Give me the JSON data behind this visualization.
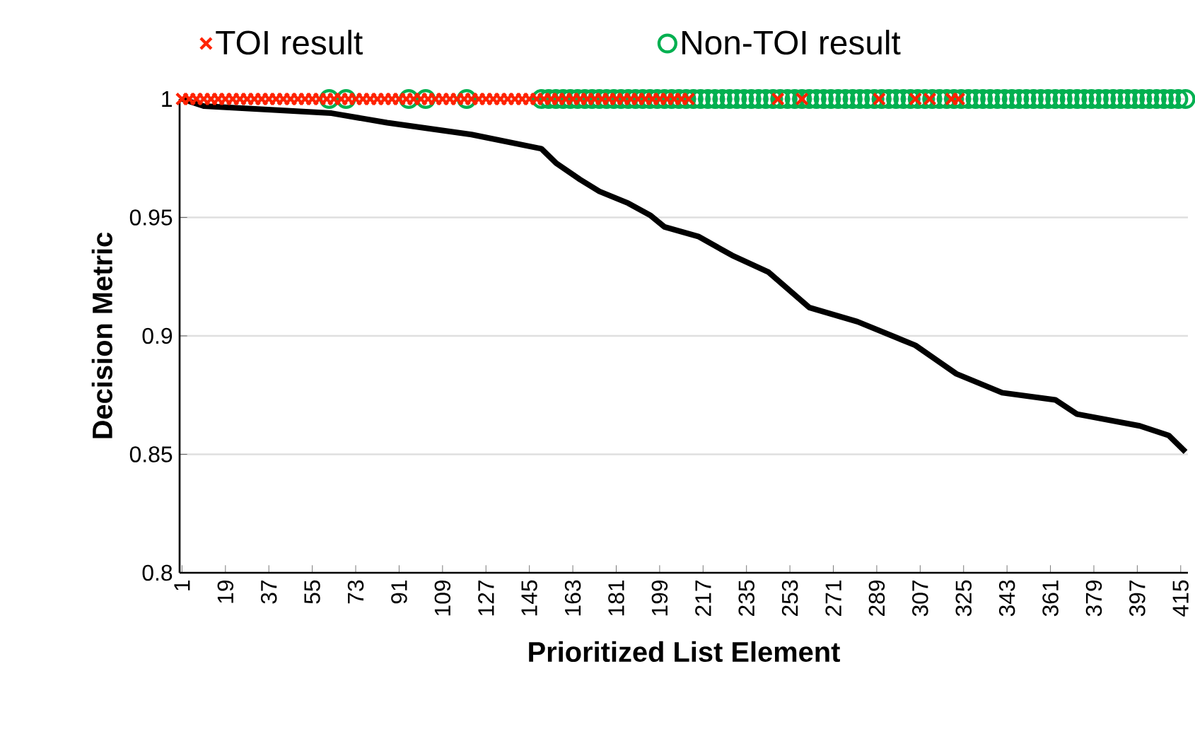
{
  "chart_data": {
    "type": "scatter",
    "xlabel": "Prioritized List Element",
    "ylabel": "Decision Metric",
    "xlim": [
      0,
      418
    ],
    "ylim": [
      0.8,
      1
    ],
    "xticks": [
      1,
      19,
      37,
      55,
      73,
      91,
      109,
      127,
      145,
      163,
      181,
      199,
      217,
      235,
      253,
      271,
      289,
      307,
      325,
      343,
      361,
      379,
      397,
      415
    ],
    "yticks": [
      {
        "value": 0.8,
        "label": "0.8"
      },
      {
        "value": 0.85,
        "label": "0.85"
      },
      {
        "value": 0.9,
        "label": "0.9"
      },
      {
        "value": 0.95,
        "label": "0.95"
      },
      {
        "value": 1,
        "label": "1"
      }
    ],
    "grid": "y",
    "legend": "top",
    "series": [
      {
        "type": "line",
        "color": "#000000",
        "marker": "none",
        "x": [
          1,
          10,
          63,
          86,
          121,
          150,
          156,
          166,
          174,
          186,
          195,
          201,
          215,
          229,
          244,
          261,
          281,
          305,
          322,
          341,
          363,
          372,
          398,
          410,
          417
        ],
        "values": [
          1,
          0.997,
          0.994,
          0.99,
          0.985,
          0.979,
          0.973,
          0.966,
          0.961,
          0.956,
          0.951,
          0.946,
          0.942,
          0.934,
          0.927,
          0.912,
          0.906,
          0.896,
          0.884,
          0.876,
          0.873,
          0.867,
          0.862,
          0.858,
          0.851
        ]
      },
      {
        "name": "Non-TOI result",
        "color": "#00b050",
        "marker": "circle",
        "x": [
          62,
          69,
          95,
          102,
          119,
          150,
          153,
          156,
          159,
          162,
          165,
          168,
          171,
          174,
          177,
          180,
          183,
          186,
          189,
          192,
          195,
          198,
          201,
          204,
          207,
          210,
          213,
          216,
          219,
          222,
          225,
          228,
          231,
          234,
          237,
          240,
          243,
          246,
          249,
          252,
          255,
          258,
          261,
          264,
          267,
          270,
          273,
          276,
          279,
          282,
          285,
          288,
          291,
          294,
          297,
          300,
          303,
          306,
          309,
          312,
          315,
          318,
          321,
          324,
          327,
          330,
          333,
          336,
          339,
          342,
          345,
          348,
          351,
          354,
          357,
          360,
          363,
          366,
          369,
          372,
          375,
          378,
          381,
          384,
          387,
          390,
          393,
          396,
          399,
          402,
          405,
          408,
          411,
          414,
          417
        ],
        "values": [
          1,
          1,
          1,
          1,
          1,
          1,
          1,
          1,
          1,
          1,
          1,
          1,
          1,
          1,
          1,
          1,
          1,
          1,
          1,
          1,
          1,
          1,
          1,
          1,
          1,
          1,
          1,
          1,
          1,
          1,
          1,
          1,
          1,
          1,
          1,
          1,
          1,
          1,
          1,
          1,
          1,
          1,
          1,
          1,
          1,
          1,
          1,
          1,
          1,
          1,
          1,
          1,
          1,
          1,
          1,
          1,
          1,
          1,
          1,
          1,
          1,
          1,
          1,
          1,
          1,
          1,
          1,
          1,
          1,
          1,
          1,
          1,
          1,
          1,
          1,
          1,
          1,
          1,
          1,
          1,
          1,
          1,
          1,
          1,
          1,
          1,
          1,
          1,
          1,
          1,
          1,
          1,
          1,
          1,
          1
        ]
      },
      {
        "name": "TOI result",
        "color": "#ff2200",
        "marker": "cross",
        "x": [
          1,
          4,
          7,
          10,
          13,
          16,
          19,
          22,
          25,
          28,
          31,
          34,
          37,
          40,
          43,
          46,
          49,
          52,
          55,
          58,
          61,
          64,
          67,
          70,
          73,
          76,
          79,
          82,
          85,
          88,
          91,
          94,
          97,
          100,
          103,
          106,
          109,
          112,
          115,
          118,
          121,
          124,
          127,
          130,
          133,
          136,
          139,
          142,
          145,
          148,
          151,
          154,
          157,
          160,
          163,
          166,
          169,
          172,
          175,
          178,
          181,
          184,
          187,
          190,
          193,
          196,
          199,
          202,
          205,
          208,
          211,
          248,
          258,
          290,
          305,
          311,
          320,
          323
        ],
        "values": [
          1,
          1,
          1,
          1,
          1,
          1,
          1,
          1,
          1,
          1,
          1,
          1,
          1,
          1,
          1,
          1,
          1,
          1,
          1,
          1,
          1,
          1,
          1,
          1,
          1,
          1,
          1,
          1,
          1,
          1,
          1,
          1,
          1,
          1,
          1,
          1,
          1,
          1,
          1,
          1,
          1,
          1,
          1,
          1,
          1,
          1,
          1,
          1,
          1,
          1,
          1,
          1,
          1,
          1,
          1,
          1,
          1,
          1,
          1,
          1,
          1,
          1,
          1,
          1,
          1,
          1,
          1,
          1,
          1,
          1,
          1,
          1,
          1,
          1,
          1,
          1,
          1,
          1
        ]
      }
    ]
  }
}
